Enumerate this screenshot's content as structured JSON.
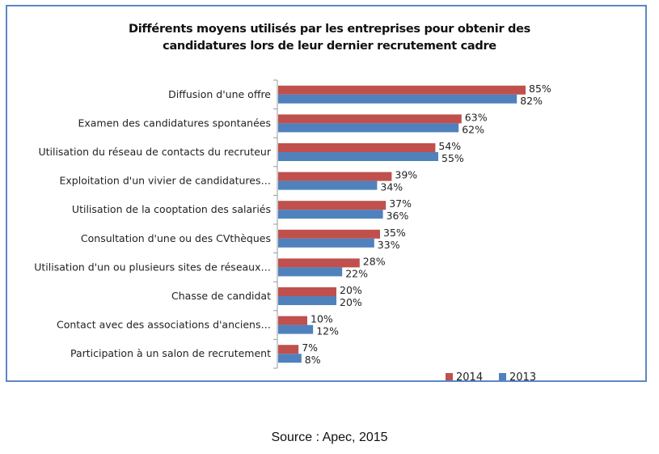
{
  "chart_data": {
    "type": "bar",
    "orientation": "horizontal",
    "title": "Différents moyens utilisés par les entreprises pour obtenir des candidatures lors de leur dernier recrutement cadre",
    "title_lines": [
      "Différents moyens utilisés par les entreprises pour obtenir des",
      "candidatures lors de leur dernier recrutement cadre"
    ],
    "categories": [
      "Diffusion d'une offre",
      "Examen des candidatures spontanées",
      "Utilisation du réseau de contacts du recruteur",
      "Exploitation d'un vivier de candidatures…",
      "Utilisation de la cooptation des salariés",
      "Consultation d'une ou des CVthèques",
      "Utilisation d'un ou plusieurs sites de réseaux…",
      "Chasse de candidat",
      "Contact avec des associations d'anciens…",
      "Participation à un salon de recrutement"
    ],
    "series": [
      {
        "name": "2014",
        "color": "#c0504d",
        "values": [
          85,
          63,
          54,
          39,
          37,
          35,
          28,
          20,
          10,
          7
        ]
      },
      {
        "name": "2013",
        "color": "#4f81bd",
        "values": [
          82,
          62,
          55,
          34,
          36,
          33,
          22,
          20,
          12,
          8
        ]
      }
    ],
    "value_suffix": "%",
    "xlabel": "",
    "ylabel": "",
    "xlim": [
      0,
      100
    ],
    "grid": false,
    "legend": {
      "position": "bottom-right",
      "entries": [
        "2014",
        "2013"
      ]
    }
  },
  "source": "Source : Apec, 2015"
}
